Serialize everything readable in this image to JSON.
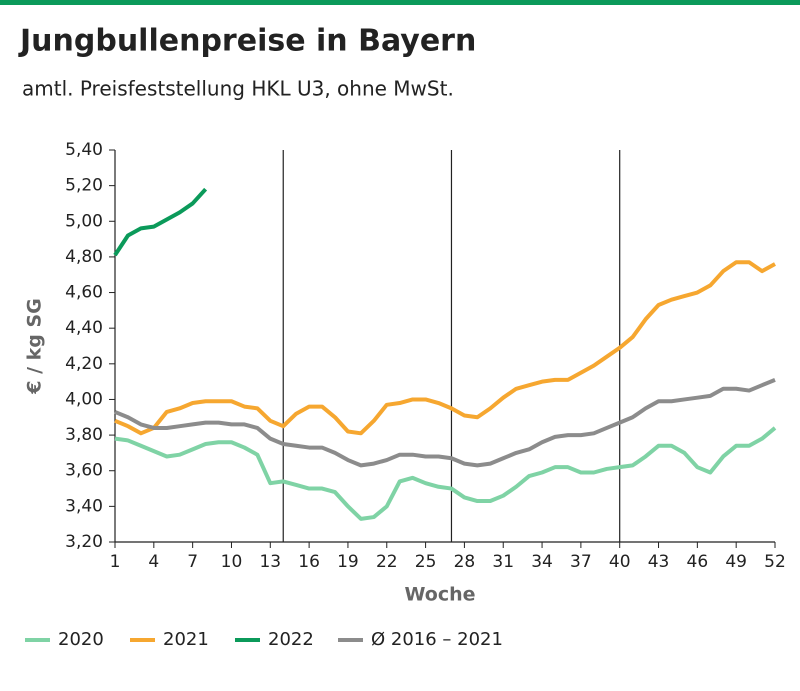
{
  "chart_data": {
    "type": "line",
    "title": "Jungbullenpreise in Bayern",
    "subtitle": "amtl. Preisfeststellung HKL U3, ohne MwSt.",
    "y_label": "€ / kg SG",
    "x_label": "Woche",
    "x": [
      1,
      2,
      3,
      4,
      5,
      6,
      7,
      8,
      9,
      10,
      11,
      12,
      13,
      14,
      15,
      16,
      17,
      18,
      19,
      20,
      21,
      22,
      23,
      24,
      25,
      26,
      27,
      28,
      29,
      30,
      31,
      32,
      33,
      34,
      35,
      36,
      37,
      38,
      39,
      40,
      41,
      42,
      43,
      44,
      45,
      46,
      47,
      48,
      49,
      50,
      51,
      52
    ],
    "xlim": [
      1,
      52
    ],
    "xticks": [
      1,
      4,
      7,
      10,
      13,
      16,
      19,
      22,
      25,
      28,
      31,
      34,
      37,
      40,
      43,
      46,
      49,
      52
    ],
    "xgrid": [
      14,
      27,
      40
    ],
    "ylim": [
      3.2,
      5.4
    ],
    "yticks": [
      {
        "value": 3.2,
        "label": "3,20"
      },
      {
        "value": 3.4,
        "label": "3,40"
      },
      {
        "value": 3.6,
        "label": "3,60"
      },
      {
        "value": 3.8,
        "label": "3,80"
      },
      {
        "value": 4.0,
        "label": "4,00"
      },
      {
        "value": 4.2,
        "label": "4,20"
      },
      {
        "value": 4.4,
        "label": "4,40"
      },
      {
        "value": 4.6,
        "label": "4,60"
      },
      {
        "value": 4.8,
        "label": "4,80"
      },
      {
        "value": 5.0,
        "label": "5,00"
      },
      {
        "value": 5.2,
        "label": "5,20"
      },
      {
        "value": 5.4,
        "label": "5,40"
      }
    ],
    "legend": "bottom",
    "series": [
      {
        "name": "2020",
        "color": "#7fd3a5",
        "values": [
          3.78,
          3.77,
          3.74,
          3.71,
          3.68,
          3.69,
          3.72,
          3.75,
          3.76,
          3.76,
          3.73,
          3.69,
          3.53,
          3.54,
          3.52,
          3.5,
          3.5,
          3.48,
          3.4,
          3.33,
          3.34,
          3.4,
          3.54,
          3.56,
          3.53,
          3.51,
          3.5,
          3.45,
          3.43,
          3.43,
          3.46,
          3.51,
          3.57,
          3.59,
          3.62,
          3.62,
          3.59,
          3.59,
          3.61,
          3.62,
          3.63,
          3.68,
          3.74,
          3.74,
          3.7,
          3.62,
          3.59,
          3.68,
          3.74,
          3.74,
          3.78,
          3.84
        ]
      },
      {
        "name": "2021",
        "color": "#f6a730",
        "values": [
          3.88,
          3.85,
          3.81,
          3.84,
          3.93,
          3.95,
          3.98,
          3.99,
          3.99,
          3.99,
          3.96,
          3.95,
          3.88,
          3.85,
          3.92,
          3.96,
          3.96,
          3.9,
          3.82,
          3.81,
          3.88,
          3.97,
          3.98,
          4.0,
          4.0,
          3.98,
          3.95,
          3.91,
          3.9,
          3.95,
          4.01,
          4.06,
          4.08,
          4.1,
          4.11,
          4.11,
          4.15,
          4.19,
          4.24,
          4.29,
          4.35,
          4.45,
          4.53,
          4.56,
          4.58,
          4.6,
          4.64,
          4.72,
          4.77,
          4.77,
          4.72,
          4.76
        ]
      },
      {
        "name": "2022",
        "color": "#0b9a5a",
        "values": [
          4.81,
          4.92,
          4.96,
          4.97,
          5.01,
          5.05,
          5.1,
          5.18,
          null,
          null,
          null,
          null,
          null,
          null,
          null,
          null,
          null,
          null,
          null,
          null,
          null,
          null,
          null,
          null,
          null,
          null,
          null,
          null,
          null,
          null,
          null,
          null,
          null,
          null,
          null,
          null,
          null,
          null,
          null,
          null,
          null,
          null,
          null,
          null,
          null,
          null,
          null,
          null,
          null,
          null,
          null,
          null
        ]
      },
      {
        "name": "Ø 2016 – 2021",
        "color": "#8c8c8c",
        "values": [
          3.93,
          3.9,
          3.86,
          3.84,
          3.84,
          3.85,
          3.86,
          3.87,
          3.87,
          3.86,
          3.86,
          3.84,
          3.78,
          3.75,
          3.74,
          3.73,
          3.73,
          3.7,
          3.66,
          3.63,
          3.64,
          3.66,
          3.69,
          3.69,
          3.68,
          3.68,
          3.67,
          3.64,
          3.63,
          3.64,
          3.67,
          3.7,
          3.72,
          3.76,
          3.79,
          3.8,
          3.8,
          3.81,
          3.84,
          3.87,
          3.9,
          3.95,
          3.99,
          3.99,
          4.0,
          4.01,
          4.02,
          4.06,
          4.06,
          4.05,
          4.08,
          4.11
        ]
      }
    ]
  }
}
